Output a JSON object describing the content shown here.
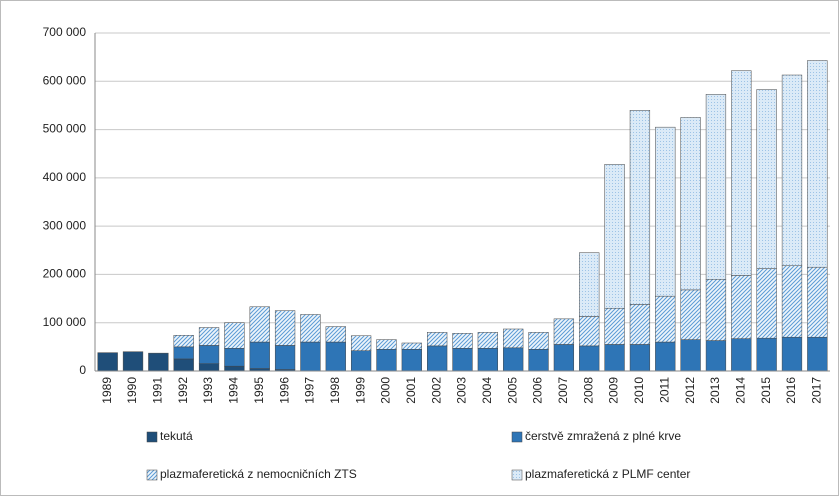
{
  "chart_data": {
    "type": "stacked-bar",
    "categories": [
      "1989",
      "1990",
      "1991",
      "1992",
      "1993",
      "1994",
      "1995",
      "1996",
      "1997",
      "1998",
      "1999",
      "2000",
      "2001",
      "2002",
      "2003",
      "2004",
      "2005",
      "2006",
      "2007",
      "2008",
      "2009",
      "2010",
      "2011",
      "2012",
      "2013",
      "2014",
      "2015",
      "2016",
      "2017"
    ],
    "series": [
      {
        "name": "tekutá",
        "color": "#1f4e79",
        "values": [
          38000,
          40000,
          37000,
          25000,
          15000,
          10000,
          5000,
          3000,
          0,
          0,
          0,
          0,
          0,
          0,
          0,
          0,
          0,
          0,
          0,
          0,
          0,
          0,
          0,
          0,
          0,
          0,
          0,
          0,
          0
        ]
      },
      {
        "name": "čerstvě zmražená z plné krve",
        "color": "#2e75b6",
        "values": [
          0,
          0,
          0,
          25000,
          38000,
          37000,
          55000,
          50000,
          60000,
          60000,
          42000,
          45000,
          45000,
          52000,
          47000,
          47000,
          48000,
          45000,
          55000,
          52000,
          55000,
          55000,
          60000,
          65000,
          63000,
          67000,
          68000,
          70000,
          70000
        ]
      },
      {
        "name": "plazmaferetická z nemocničních ZTS",
        "color": "#5b9bd5",
        "values": [
          0,
          0,
          0,
          24000,
          37000,
          53000,
          73000,
          72000,
          57000,
          32000,
          31000,
          20000,
          13000,
          28000,
          31000,
          33000,
          39000,
          35000,
          53000,
          61000,
          75000,
          83000,
          95000,
          103000,
          127000,
          131000,
          144000,
          148000,
          145000
        ]
      },
      {
        "name": "plazmaferetická z PLMF center",
        "color": "#9dc3e6",
        "values": [
          0,
          0,
          0,
          0,
          0,
          0,
          0,
          0,
          0,
          0,
          0,
          0,
          0,
          0,
          0,
          0,
          0,
          0,
          0,
          132000,
          298000,
          402000,
          350000,
          357000,
          383000,
          424000,
          371000,
          395000,
          428000
        ]
      }
    ],
    "ylim": [
      0,
      700000
    ],
    "yticks": [
      0,
      {
        "value": 100000,
        "label": "100 000"
      },
      {
        "value": 200000,
        "label": "200 000"
      },
      {
        "value": 300000,
        "label": "300 000"
      },
      {
        "value": 400000,
        "label": "400 000"
      },
      {
        "value": 500000,
        "label": "500 000"
      },
      {
        "value": 600000,
        "label": "600 000"
      },
      {
        "value": 700000,
        "label": "700 000"
      }
    ],
    "grid": true
  }
}
